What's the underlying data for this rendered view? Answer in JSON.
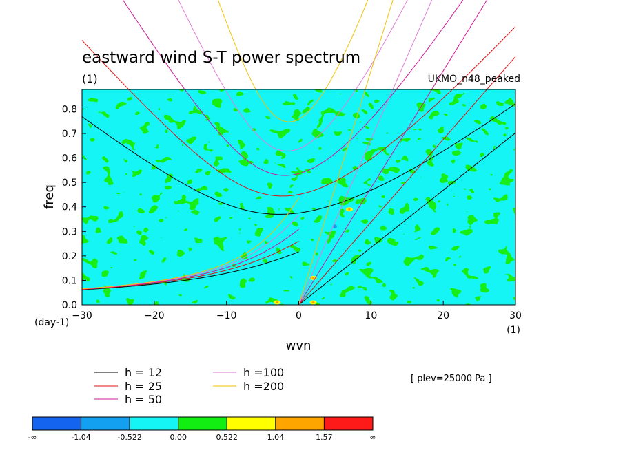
{
  "chart_data": {
    "type": "heatmap",
    "title": "eastward wind S-T power spectrum",
    "subtitle_left": "(1)",
    "subtitle_right": "UKMO_n48_peaked",
    "xlabel": "wvn",
    "ylabel": "freq",
    "xunit": "(1)",
    "yunit": "(day-1)",
    "xlim": [
      -30,
      30
    ],
    "ylim": [
      0,
      0.88
    ],
    "xticks": [
      -30,
      -20,
      -10,
      0,
      10,
      20,
      30
    ],
    "yticks": [
      0.0,
      0.1,
      0.2,
      0.3,
      0.4,
      0.5,
      0.6,
      0.7,
      0.8
    ],
    "annotation": "[ plev=25000 Pa ]",
    "curves_legend": [
      {
        "label": "h = 12",
        "h": 12,
        "color": "#000000"
      },
      {
        "label": "h = 25",
        "h": 25,
        "color": "#e01010"
      },
      {
        "label": "h = 50",
        "h": 50,
        "color": "#d0149b"
      },
      {
        "label": "h =100",
        "h": 100,
        "color": "#e27ad8"
      },
      {
        "label": "h =200",
        "h": 200,
        "color": "#f2c200"
      }
    ],
    "colorbar": {
      "colors": [
        "#1464f0",
        "#14a0f0",
        "#16f5f5",
        "#12ee12",
        "#ffff00",
        "#ffa500",
        "#ff1a1a"
      ],
      "labels": [
        "-∞",
        "-1.04",
        "-0.522",
        "0.00",
        "0.522",
        "1.04",
        "1.57",
        "∞"
      ]
    },
    "field_levels": {
      "dominant": [
        "-0.522 to 0.00",
        "0.00 to 0.522"
      ],
      "isolated_positive_spots": [
        [
          2,
          0.11
        ],
        [
          7,
          0.39
        ],
        [
          2,
          0.01
        ],
        [
          -3,
          0.01
        ]
      ],
      "isolated_negative_spots": [
        [
          5,
          0.32
        ]
      ]
    }
  }
}
